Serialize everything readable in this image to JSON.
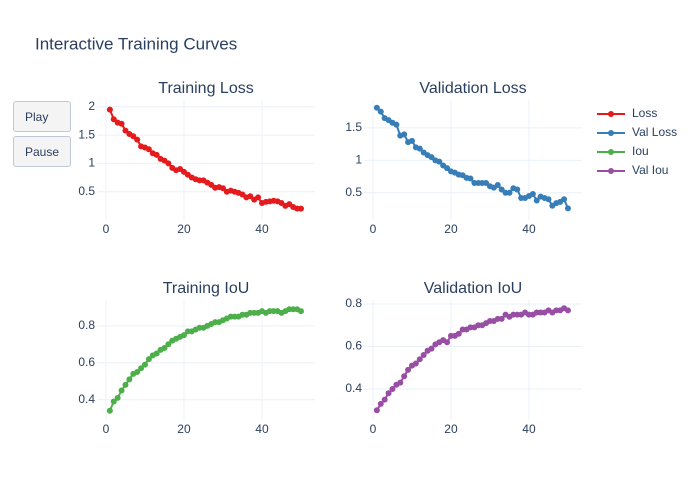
{
  "title": "Interactive Training Curves",
  "buttons": [
    "Play",
    "Pause"
  ],
  "chart_data": [
    {
      "type": "line",
      "title": "Training Loss",
      "x": [
        1,
        2,
        3,
        4,
        5,
        6,
        7,
        8,
        9,
        10,
        11,
        12,
        13,
        14,
        15,
        16,
        17,
        18,
        19,
        20,
        21,
        22,
        23,
        24,
        25,
        26,
        27,
        28,
        29,
        30,
        31,
        32,
        33,
        34,
        35,
        36,
        37,
        38,
        39,
        40,
        41,
        42,
        43,
        44,
        45,
        46,
        47,
        48,
        49,
        50
      ],
      "series": [
        {
          "name": "Loss",
          "color": "#e41a1c",
          "values": [
            1.95,
            1.78,
            1.72,
            1.7,
            1.58,
            1.52,
            1.48,
            1.42,
            1.3,
            1.28,
            1.25,
            1.18,
            1.15,
            1.08,
            1.05,
            1.0,
            0.92,
            0.88,
            0.9,
            0.85,
            0.8,
            0.75,
            0.72,
            0.7,
            0.7,
            0.66,
            0.62,
            0.57,
            0.58,
            0.56,
            0.5,
            0.52,
            0.5,
            0.48,
            0.45,
            0.4,
            0.42,
            0.36,
            0.4,
            0.3,
            0.32,
            0.33,
            0.34,
            0.33,
            0.3,
            0.25,
            0.28,
            0.23,
            0.2,
            0.2
          ]
        }
      ],
      "xlim": [
        -2.3,
        53.6
      ],
      "ylim": [
        0.0,
        2.12
      ],
      "xticks": [
        0,
        20,
        40
      ],
      "yticks": [
        0.5,
        1,
        1.5,
        2
      ],
      "grid": true
    },
    {
      "type": "line",
      "title": "Validation Loss",
      "x": [
        1,
        2,
        3,
        4,
        5,
        6,
        7,
        8,
        9,
        10,
        11,
        12,
        13,
        14,
        15,
        16,
        17,
        18,
        19,
        20,
        21,
        22,
        23,
        24,
        25,
        26,
        27,
        28,
        29,
        30,
        31,
        32,
        33,
        34,
        35,
        36,
        37,
        38,
        39,
        40,
        41,
        42,
        43,
        44,
        45,
        46,
        47,
        48,
        49,
        50
      ],
      "series": [
        {
          "name": "Val Loss",
          "color": "#377eb8",
          "values": [
            1.81,
            1.75,
            1.65,
            1.62,
            1.58,
            1.55,
            1.38,
            1.4,
            1.28,
            1.3,
            1.2,
            1.18,
            1.12,
            1.08,
            1.05,
            1.0,
            0.98,
            0.92,
            0.88,
            0.83,
            0.81,
            0.78,
            0.77,
            0.73,
            0.72,
            0.65,
            0.65,
            0.65,
            0.65,
            0.6,
            0.58,
            0.62,
            0.55,
            0.5,
            0.5,
            0.57,
            0.55,
            0.42,
            0.42,
            0.45,
            0.48,
            0.38,
            0.44,
            0.42,
            0.4,
            0.3,
            0.34,
            0.36,
            0.4,
            0.26
          ]
        }
      ],
      "xlim": [
        -2.3,
        53.6
      ],
      "ylim": [
        0.08,
        1.93
      ],
      "xticks": [
        0,
        20,
        40
      ],
      "yticks": [
        0.5,
        1,
        1.5
      ],
      "grid": true
    },
    {
      "type": "line",
      "title": "Training IoU",
      "x": [
        1,
        2,
        3,
        4,
        5,
        6,
        7,
        8,
        9,
        10,
        11,
        12,
        13,
        14,
        15,
        16,
        17,
        18,
        19,
        20,
        21,
        22,
        23,
        24,
        25,
        26,
        27,
        28,
        29,
        30,
        31,
        32,
        33,
        34,
        35,
        36,
        37,
        38,
        39,
        40,
        41,
        42,
        43,
        44,
        45,
        46,
        47,
        48,
        49,
        50
      ],
      "series": [
        {
          "name": "Iou",
          "color": "#4daf4a",
          "values": [
            0.34,
            0.39,
            0.41,
            0.45,
            0.48,
            0.51,
            0.54,
            0.55,
            0.57,
            0.59,
            0.62,
            0.64,
            0.65,
            0.67,
            0.68,
            0.7,
            0.72,
            0.73,
            0.74,
            0.75,
            0.77,
            0.77,
            0.78,
            0.79,
            0.79,
            0.8,
            0.81,
            0.82,
            0.82,
            0.83,
            0.84,
            0.85,
            0.85,
            0.85,
            0.86,
            0.86,
            0.87,
            0.87,
            0.87,
            0.88,
            0.87,
            0.88,
            0.88,
            0.88,
            0.87,
            0.88,
            0.89,
            0.89,
            0.89,
            0.88
          ]
        }
      ],
      "xlim": [
        -2.3,
        53.6
      ],
      "ylim": [
        0.29,
        0.94
      ],
      "xticks": [
        0,
        20,
        40
      ],
      "yticks": [
        0.4,
        0.6,
        0.8
      ],
      "grid": true
    },
    {
      "type": "line",
      "title": "Validation IoU",
      "x": [
        1,
        2,
        3,
        4,
        5,
        6,
        7,
        8,
        9,
        10,
        11,
        12,
        13,
        14,
        15,
        16,
        17,
        18,
        19,
        20,
        21,
        22,
        23,
        24,
        25,
        26,
        27,
        28,
        29,
        30,
        31,
        32,
        33,
        34,
        35,
        36,
        37,
        38,
        39,
        40,
        41,
        42,
        43,
        44,
        45,
        46,
        47,
        48,
        49,
        50
      ],
      "series": [
        {
          "name": "Val Iou",
          "color": "#984ea3",
          "values": [
            0.3,
            0.33,
            0.35,
            0.38,
            0.4,
            0.42,
            0.43,
            0.46,
            0.49,
            0.51,
            0.52,
            0.54,
            0.56,
            0.58,
            0.59,
            0.61,
            0.62,
            0.63,
            0.62,
            0.65,
            0.65,
            0.66,
            0.68,
            0.68,
            0.69,
            0.69,
            0.7,
            0.7,
            0.71,
            0.72,
            0.72,
            0.73,
            0.73,
            0.75,
            0.74,
            0.75,
            0.75,
            0.75,
            0.76,
            0.75,
            0.75,
            0.76,
            0.76,
            0.76,
            0.77,
            0.76,
            0.77,
            0.77,
            0.78,
            0.77
          ]
        }
      ],
      "xlim": [
        -2.3,
        53.6
      ],
      "ylim": [
        0.254,
        0.819
      ],
      "xticks": [
        0,
        20,
        40
      ],
      "yticks": [
        0.4,
        0.6,
        0.8
      ],
      "grid": true
    }
  ]
}
